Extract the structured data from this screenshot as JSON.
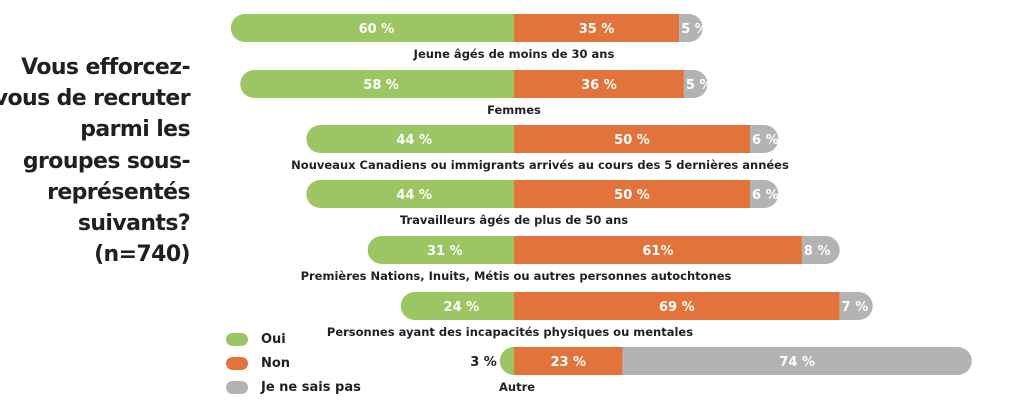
{
  "question": {
    "lines": [
      "Vous efforcez-",
      "vous de recruter",
      "parmi les",
      "groupes sous-",
      "représentés",
      "suivants?",
      "(n=740)"
    ]
  },
  "legend": [
    {
      "label": "Oui",
      "color": "#9cc663"
    },
    {
      "label": "Non",
      "color": "#e2743b"
    },
    {
      "label": "Je ne sais pas",
      "color": "#b3b3b2"
    }
  ],
  "chart_data": {
    "type": "bar",
    "orientation": "horizontal",
    "stacked": true,
    "alignment": "diverging at Oui/Non boundary",
    "title": "Vous efforcez-vous de recruter parmi les groupes sous-représentés suivants? (n=740)",
    "unit": "%",
    "categories": [
      "Jeune âgés de moins de 30 ans",
      "Femmes",
      "Nouveaux Canadiens ou immigrants arrivés au cours des 5 dernières années",
      "Travailleurs âgés de plus de 50 ans",
      "Premières Nations, Inuits, Métis ou autres personnes autochtones",
      "Personnes ayant des incapacités physiques ou mentales",
      "Autre"
    ],
    "series": [
      {
        "name": "Oui",
        "color": "#9cc663",
        "values": [
          60,
          58,
          44,
          44,
          31,
          24,
          3
        ],
        "labels": [
          "60 %",
          "58 %",
          "44 %",
          "44 %",
          "31 %",
          "24 %",
          "3 %"
        ]
      },
      {
        "name": "Non",
        "color": "#e2743b",
        "values": [
          35,
          36,
          50,
          50,
          61,
          69,
          23
        ],
        "labels": [
          "35 %",
          "36 %",
          "50 %",
          "50 %",
          "61%",
          "69 %",
          "23 %"
        ]
      },
      {
        "name": "Je ne sais pas",
        "color": "#b3b3b2",
        "values": [
          5,
          5,
          6,
          6,
          8,
          7,
          74
        ],
        "labels": [
          "5 %",
          "5 %",
          "6 %",
          "6 %",
          "8 %",
          "7 %",
          "74 %"
        ]
      }
    ],
    "legend_position": "bottom-left",
    "grid": false
  }
}
